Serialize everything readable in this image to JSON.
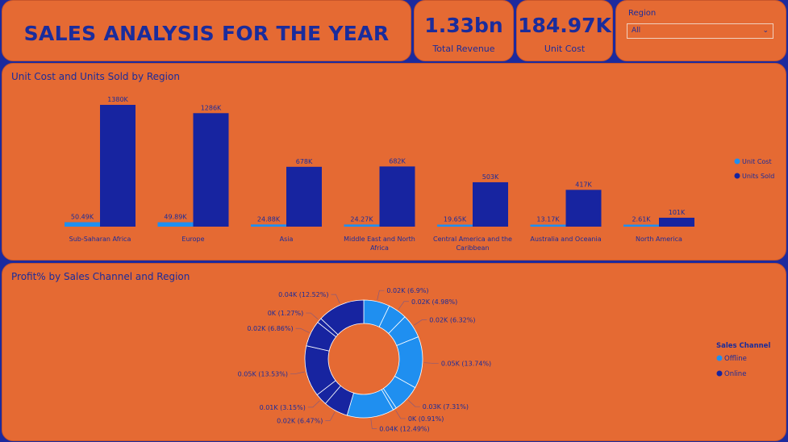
{
  "header": {
    "title": "SALES ANALYSIS FOR THE YEAR"
  },
  "kpis": [
    {
      "value": "1.33bn",
      "label": "Total Revenue"
    },
    {
      "value": "184.97K",
      "label": "Unit Cost"
    }
  ],
  "slicer": {
    "title": "Region",
    "value": "All"
  },
  "colors": {
    "accent_light": "#1f8ff0",
    "accent_dark": "#1724a0",
    "card": "#e56a33",
    "text": "#1a2c9c"
  },
  "chart_data": [
    {
      "type": "bar",
      "title": "Unit Cost and Units Sold by Region",
      "categories": [
        "Sub-Saharan Africa",
        "Europe",
        "Asia",
        "Middle East and North Africa",
        "Central America and the Caribbean",
        "Australia and Oceania",
        "North America"
      ],
      "series": [
        {
          "name": "Unit Cost",
          "values": [
            50.49,
            49.89,
            24.88,
            24.27,
            19.65,
            13.17,
            2.61
          ],
          "labels": [
            "50.49K",
            "49.89K",
            "24.88K",
            "24.27K",
            "19.65K",
            "13.17K",
            "2.61K"
          ],
          "color": "#1f8ff0"
        },
        {
          "name": "Units Sold",
          "values": [
            1380,
            1286,
            678,
            682,
            503,
            417,
            101
          ],
          "labels": [
            "1380K",
            "1286K",
            "678K",
            "682K",
            "503K",
            "417K",
            "101K"
          ],
          "color": "#1724a0"
        }
      ],
      "legend": "right"
    },
    {
      "type": "pie",
      "title": "Profit% by Sales Channel and Region",
      "legend_title": "Sales Channel",
      "legend_items": [
        {
          "name": "Offline",
          "color": "#1f8ff0"
        },
        {
          "name": "Online",
          "color": "#1724a0"
        }
      ],
      "slices": [
        {
          "channel": "Offline",
          "pct": 6.9,
          "label": "0.02K (6.9%)"
        },
        {
          "channel": "Offline",
          "pct": 4.98,
          "label": "0.02K (4.98%)"
        },
        {
          "channel": "Offline",
          "pct": 6.32,
          "label": "0.02K (6.32%)"
        },
        {
          "channel": "Offline",
          "pct": 13.74,
          "label": "0.05K (13.74%)"
        },
        {
          "channel": "Offline",
          "pct": 7.31,
          "label": "0.03K (7.31%)"
        },
        {
          "channel": "Offline",
          "pct": 0.91,
          "label": "0K (0.91%)"
        },
        {
          "channel": "Offline",
          "pct": 12.49,
          "label": "0.04K (12.49%)"
        },
        {
          "channel": "Online",
          "pct": 6.47,
          "label": "0.02K (6.47%)"
        },
        {
          "channel": "Online",
          "pct": 3.15,
          "label": "0.01K (3.15%)"
        },
        {
          "channel": "Online",
          "pct": 13.53,
          "label": "0.05K (13.53%)"
        },
        {
          "channel": "Online",
          "pct": 6.86,
          "label": "0.02K (6.86%)"
        },
        {
          "channel": "Online",
          "pct": 1.27,
          "label": "0K (1.27%)"
        },
        {
          "channel": "Online",
          "pct": 12.52,
          "label": "0.04K (12.52%)"
        }
      ]
    }
  ]
}
